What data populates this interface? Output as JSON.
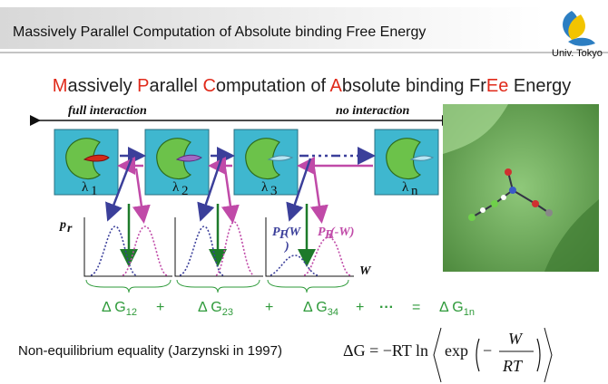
{
  "header": {
    "title": "Massively Parallel Computation of Absolute binding Free Energy",
    "logo": "Univ. Tokyo"
  },
  "title": {
    "parts": [
      "M",
      "assively ",
      "P",
      "arallel ",
      "C",
      "omputation of ",
      "A",
      "bsolute binding Fr",
      "Ee",
      " Energy"
    ]
  },
  "diagram": {
    "left_label": "full interaction",
    "right_label": "no interaction",
    "states": [
      {
        "symbol": "λ",
        "index": "1"
      },
      {
        "symbol": "λ",
        "index": "2"
      },
      {
        "symbol": "λ",
        "index": "3"
      },
      {
        "symbol": "λ",
        "index": "n"
      }
    ],
    "plot": {
      "y_label": "p",
      "y_sub": "r",
      "x_label": "W",
      "forward": {
        "symbol": "P",
        "sub": "F",
        "arg": "(W",
        "close": ")"
      },
      "reverse": {
        "symbol": "P",
        "sub": "R",
        "arg": "(-W)"
      }
    }
  },
  "sum": {
    "items": [
      {
        "text": "Δ G",
        "sub": "12"
      },
      {
        "text": "+"
      },
      {
        "text": "Δ G",
        "sub": "23"
      },
      {
        "text": "+"
      },
      {
        "text": "Δ G",
        "sub": "34"
      },
      {
        "text": "+"
      },
      {
        "text": "···"
      },
      {
        "text": "="
      },
      {
        "text": "Δ G",
        "sub": "1n"
      }
    ]
  },
  "equality": {
    "text": "Non-equilibrium equality (Jarzynski in 1997)",
    "lhs": "ΔG = −RT ln",
    "func": "exp",
    "minus": "−",
    "num": "W",
    "den": "RT"
  }
}
